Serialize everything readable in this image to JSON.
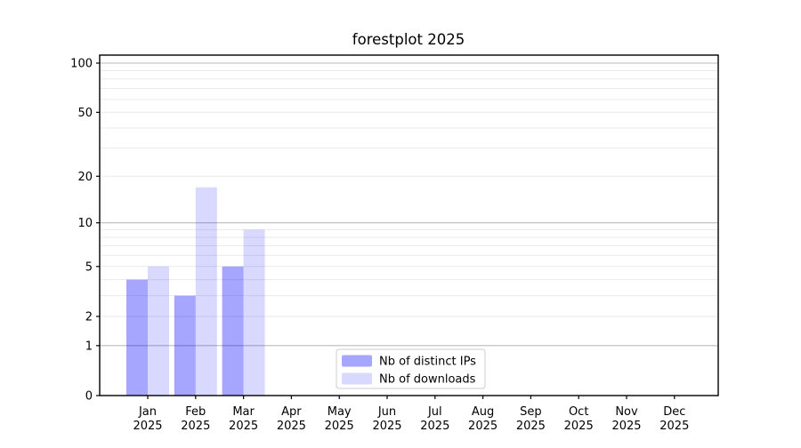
{
  "title": "forestplot 2025",
  "chart_data": {
    "type": "bar",
    "title": "forestplot 2025",
    "year_label": "2025",
    "categories": [
      "Jan",
      "Feb",
      "Mar",
      "Apr",
      "May",
      "Jun",
      "Jul",
      "Aug",
      "Sep",
      "Oct",
      "Nov",
      "Dec"
    ],
    "series": [
      {
        "name": "Nb of distinct IPs",
        "color": "#0000ff",
        "opacity": 0.35,
        "values": [
          4,
          3,
          5,
          0,
          0,
          0,
          0,
          0,
          0,
          0,
          0,
          0
        ]
      },
      {
        "name": "Nb of downloads",
        "color": "#0000ff",
        "opacity": 0.15,
        "values": [
          5,
          17,
          9,
          0,
          0,
          0,
          0,
          0,
          0,
          0,
          0,
          0
        ]
      }
    ],
    "yscale": "log1p",
    "ylim": [
      0,
      112
    ],
    "ytick_labels": [
      0,
      1,
      2,
      5,
      10,
      20,
      50,
      100
    ],
    "major_gridlines": [
      1,
      10,
      100
    ],
    "minor_gridlines": [
      2,
      3,
      4,
      5,
      6,
      7,
      8,
      9,
      20,
      30,
      40,
      50,
      60,
      70,
      80,
      90
    ],
    "legend": {
      "entries": [
        "Nb of distinct IPs",
        "Nb of downloads"
      ],
      "position": "lower-center"
    },
    "colors": {
      "background": "#ffffff",
      "spine": "#000000",
      "major_grid": "#bbbbbb",
      "minor_grid": "#eaeaea",
      "text": "#000000",
      "legend_border": "#cccccc",
      "legend_background": "#ffffff"
    },
    "grid": "on",
    "xlabel": "",
    "ylabel": ""
  }
}
